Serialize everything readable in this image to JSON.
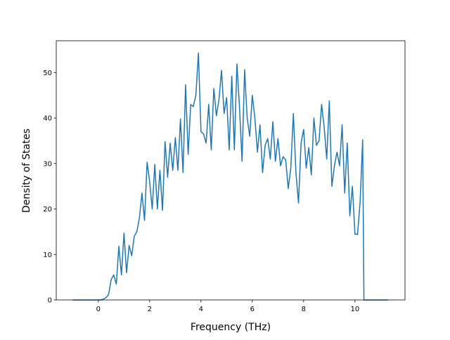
{
  "chart_data": {
    "type": "line",
    "xlabel": "Frequency (THz)",
    "ylabel": "Density of States",
    "x": [
      -1.0,
      -0.5,
      0.0,
      0.1,
      0.2,
      0.3,
      0.4,
      0.5,
      0.6,
      0.7,
      0.8,
      0.9,
      1.0,
      1.1,
      1.2,
      1.3,
      1.4,
      1.5,
      1.6,
      1.7,
      1.8,
      1.9,
      2.0,
      2.1,
      2.2,
      2.3,
      2.4,
      2.5,
      2.6,
      2.7,
      2.8,
      2.9,
      3.0,
      3.1,
      3.2,
      3.3,
      3.4,
      3.5,
      3.6,
      3.7,
      3.8,
      3.9,
      4.0,
      4.1,
      4.2,
      4.3,
      4.4,
      4.5,
      4.6,
      4.7,
      4.8,
      4.9,
      5.0,
      5.1,
      5.2,
      5.3,
      5.4,
      5.5,
      5.6,
      5.7,
      5.8,
      5.9,
      6.0,
      6.1,
      6.2,
      6.3,
      6.4,
      6.5,
      6.6,
      6.7,
      6.8,
      6.9,
      7.0,
      7.1,
      7.2,
      7.3,
      7.4,
      7.5,
      7.6,
      7.7,
      7.8,
      7.9,
      8.0,
      8.1,
      8.2,
      8.3,
      8.4,
      8.5,
      8.6,
      8.7,
      8.8,
      8.9,
      9.0,
      9.1,
      9.2,
      9.3,
      9.4,
      9.5,
      9.6,
      9.7,
      9.8,
      9.9,
      10.0,
      10.1,
      10.2,
      10.3,
      10.35,
      11.3
    ],
    "series": [
      {
        "color": "#1f77b4",
        "values": [
          0,
          0,
          0,
          0,
          0.2,
          0.5,
          1.2,
          4.5,
          5.5,
          3.5,
          11.8,
          5.5,
          14.7,
          6,
          12,
          9.7,
          14,
          15,
          18,
          23.5,
          17.5,
          30.3,
          26,
          20,
          29.8,
          20,
          28.5,
          19.7,
          34.8,
          27,
          34.5,
          28.5,
          35.7,
          28.5,
          39.8,
          28,
          47.3,
          32,
          43,
          42.5,
          45,
          54.3,
          37,
          36.5,
          34.5,
          43,
          33,
          46.5,
          40.5,
          44,
          50.5,
          41,
          44.5,
          33,
          49.2,
          33,
          51.9,
          42.5,
          30.5,
          50.6,
          40,
          36,
          45,
          40,
          32.5,
          38.5,
          28,
          34,
          35.5,
          31,
          39.2,
          30.5,
          35.5,
          29.5,
          31.5,
          30.8,
          24.5,
          29,
          41,
          28,
          21.3,
          34.5,
          37.5,
          29,
          33.5,
          27.5,
          40,
          34,
          35,
          43,
          38,
          31,
          43.8,
          25,
          29.5,
          32.5,
          29.5,
          38.5,
          23.5,
          34.5,
          18.5,
          25,
          14.5,
          14.4,
          21.5,
          35.2,
          0,
          0
        ]
      }
    ],
    "xlim": [
      -1.64,
      11.95
    ],
    "ylim": [
      0,
      57
    ],
    "xticks": [
      0,
      2,
      4,
      6,
      8,
      10
    ],
    "yticks": [
      0,
      10,
      20,
      30,
      40,
      50
    ],
    "grid": false
  }
}
